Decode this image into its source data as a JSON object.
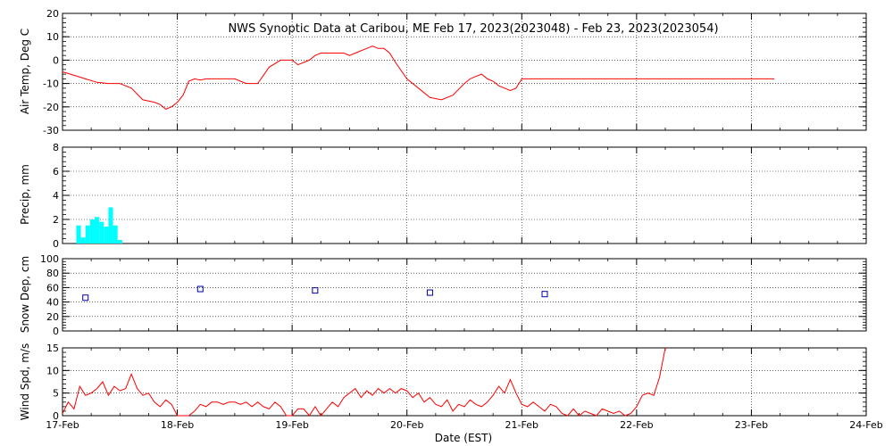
{
  "chart_data": [
    {
      "type": "line",
      "title": "NWS Synoptic Data at Caribou, ME   Feb 17, 2023(2023048) - Feb 23, 2023(2023054)",
      "ylabel": "Air Temp, Deg C",
      "ylim": [
        -30,
        20
      ],
      "yticks": [
        -30,
        -20,
        -10,
        0,
        10,
        20
      ],
      "color": "#ff0000",
      "series": [
        {
          "x": [
            0,
            0.1,
            0.2,
            0.3,
            0.4,
            0.45,
            0.5,
            0.6,
            0.7,
            0.8,
            0.85,
            0.9,
            0.95,
            1.0,
            1.05,
            1.1,
            1.15,
            1.2,
            1.25,
            1.3,
            1.35,
            1.4,
            1.45,
            1.5,
            1.6,
            1.7,
            1.8,
            1.9,
            2.0,
            2.05,
            2.1,
            2.15,
            2.2,
            2.25,
            2.3,
            2.35,
            2.4,
            2.45,
            2.5,
            2.55,
            2.6,
            2.65,
            2.7,
            2.75,
            2.8,
            2.85,
            2.9,
            3.0,
            3.1,
            3.2,
            3.3,
            3.4,
            3.5,
            3.55,
            3.6,
            3.65,
            3.7,
            3.75,
            3.8,
            3.85,
            3.9,
            3.95,
            4.0,
            4.05,
            4.1,
            4.15,
            4.2,
            4.25,
            4.3,
            4.35,
            4.4,
            4.45,
            4.5,
            4.55,
            4.6,
            4.65,
            4.7,
            4.8,
            4.9,
            5.0,
            5.05,
            5.1,
            5.2,
            5.3,
            5.4,
            5.5,
            5.6,
            5.7,
            5.8,
            5.9,
            6.0,
            6.1,
            6.2
          ],
          "y": [
            -5,
            -6.5,
            -8,
            -9.5,
            -10,
            -10,
            -10,
            -12,
            -17,
            -18,
            -19,
            -21,
            -20,
            -18,
            -15,
            -9,
            -8,
            -8.5,
            -8,
            -8,
            -8,
            -8,
            -8,
            -8,
            -10,
            -10,
            -3,
            0,
            0,
            -2,
            -1,
            0,
            2,
            3,
            3,
            3,
            3,
            3,
            2,
            3,
            4,
            5,
            6,
            5,
            5,
            3,
            -1,
            -8,
            -12,
            -16,
            -17,
            -15,
            -10,
            -8,
            -7,
            -6,
            -8,
            -9,
            -11,
            -12,
            -13,
            -12,
            -8,
            -8,
            -8,
            -8,
            -8,
            -8,
            -8,
            -8,
            -8,
            -8,
            -8,
            -8,
            -8,
            -8,
            -8,
            -8,
            -8,
            -8,
            -8,
            -8,
            -8,
            -8,
            -8,
            -8,
            -8,
            -8,
            -8,
            -8,
            -8,
            -8,
            -8
          ]
        }
      ]
    },
    {
      "type": "bar",
      "ylabel": "Precip, mm",
      "ylim": [
        0,
        8
      ],
      "yticks": [
        0,
        2,
        4,
        6,
        8
      ],
      "color": "#00ffff",
      "bar_width": 0.04,
      "x": [
        0.12,
        0.16,
        0.2,
        0.24,
        0.28,
        0.32,
        0.36,
        0.4,
        0.44,
        0.48
      ],
      "values": [
        1.5,
        0.5,
        1.5,
        2.0,
        2.2,
        1.8,
        1.4,
        3.0,
        1.5,
        0.3
      ]
    },
    {
      "type": "scatter",
      "ylabel": "Snow Dep, cm",
      "ylim": [
        0,
        100
      ],
      "yticks": [
        0,
        20,
        40,
        60,
        80,
        100
      ],
      "color": "#0000aa",
      "series": [
        {
          "x": [
            0.2,
            1.2,
            2.2,
            3.2,
            4.2
          ],
          "y": [
            46,
            58,
            56,
            53,
            51
          ]
        }
      ]
    },
    {
      "type": "line",
      "ylabel": "Wind Spd, m/s",
      "ylim": [
        0,
        15
      ],
      "yticks": [
        0,
        5,
        10,
        15
      ],
      "color": "#ff0000",
      "series": [
        {
          "x": [
            0,
            0.05,
            0.1,
            0.15,
            0.2,
            0.25,
            0.3,
            0.35,
            0.4,
            0.45,
            0.5,
            0.55,
            0.6,
            0.65,
            0.7,
            0.75,
            0.8,
            0.85,
            0.9,
            0.95,
            1.0,
            1.05,
            1.1,
            1.15,
            1.2,
            1.25,
            1.3,
            1.35,
            1.4,
            1.45,
            1.5,
            1.55,
            1.6,
            1.65,
            1.7,
            1.75,
            1.8,
            1.85,
            1.9,
            1.95,
            2.0,
            2.05,
            2.1,
            2.15,
            2.2,
            2.25,
            2.3,
            2.35,
            2.4,
            2.45,
            2.5,
            2.55,
            2.6,
            2.65,
            2.7,
            2.75,
            2.8,
            2.85,
            2.9,
            2.95,
            3.0,
            3.05,
            3.1,
            3.15,
            3.2,
            3.25,
            3.3,
            3.35,
            3.4,
            3.45,
            3.5,
            3.55,
            3.6,
            3.65,
            3.7,
            3.75,
            3.8,
            3.85,
            3.9,
            3.95,
            4.0,
            4.05,
            4.1,
            4.15,
            4.2,
            4.25,
            4.3,
            4.35,
            4.4,
            4.45,
            4.5,
            4.55,
            4.6,
            4.65,
            4.7,
            4.75,
            4.8,
            4.85,
            4.9,
            4.95,
            5.0,
            5.05,
            5.1,
            5.15,
            5.2,
            5.25
          ],
          "y": [
            0.5,
            3,
            1.5,
            6.5,
            4.5,
            5,
            6,
            7.5,
            4.5,
            6.5,
            5.5,
            6,
            9.2,
            6,
            4.5,
            5,
            3,
            2,
            3.5,
            2.5,
            0,
            0,
            0,
            1,
            2.5,
            2,
            3,
            3,
            2.5,
            3,
            3,
            2.5,
            3,
            2,
            3,
            2,
            1.5,
            3,
            2,
            0,
            0,
            1.5,
            1.5,
            0,
            2,
            0,
            1.5,
            3,
            2,
            4,
            5,
            6,
            4,
            5.5,
            4.5,
            6,
            5,
            6,
            5,
            6,
            5.5,
            4,
            5,
            3,
            4,
            2.5,
            2,
            3.5,
            1,
            2.5,
            2,
            3.5,
            2.5,
            2,
            3,
            4.5,
            6.5,
            5,
            8,
            5,
            2.5,
            2,
            3,
            2,
            1,
            2.5,
            2,
            0.5,
            0,
            1.5,
            0,
            1,
            0.5,
            0,
            1.5,
            1,
            0.5,
            1,
            0,
            0.5,
            2,
            4.5,
            5,
            4.5,
            8.5,
            15
          ]
        }
      ],
      "xlabel": "Date (EST)",
      "xticks": [
        "17-Feb",
        "18-Feb",
        "19-Feb",
        "20-Feb",
        "21-Feb",
        "22-Feb",
        "23-Feb",
        "24-Feb"
      ]
    }
  ]
}
